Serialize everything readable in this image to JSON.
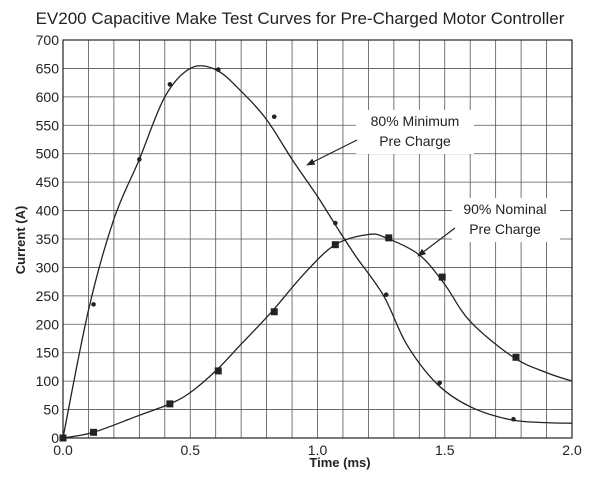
{
  "chart_data": {
    "type": "line",
    "title": "EV200 Capacitive Make Test Curves for Pre-Charged Motor Controller",
    "xlabel": "Time (ms)",
    "ylabel": "Current (A)",
    "xlim": [
      0,
      2.0
    ],
    "ylim": [
      0,
      700
    ],
    "x_ticks": [
      "0.0",
      "0.5",
      "1.0",
      "1.5",
      "2.0"
    ],
    "y_ticks": [
      "0",
      "50",
      "100",
      "150",
      "200",
      "250",
      "300",
      "350",
      "400",
      "450",
      "500",
      "550",
      "600",
      "650",
      "700"
    ],
    "grid": true,
    "series": [
      {
        "name": "80% Minimum Pre Charge",
        "marker": "dot",
        "color": "#222222",
        "curve": [
          [
            0,
            0
          ],
          [
            0.1,
            225
          ],
          [
            0.2,
            385
          ],
          [
            0.3,
            490
          ],
          [
            0.4,
            600
          ],
          [
            0.5,
            650
          ],
          [
            0.6,
            648
          ],
          [
            0.7,
            610
          ],
          [
            0.8,
            560
          ],
          [
            0.9,
            490
          ],
          [
            1.0,
            425
          ],
          [
            1.07,
            375
          ],
          [
            1.15,
            320
          ],
          [
            1.26,
            250
          ],
          [
            1.35,
            165
          ],
          [
            1.47,
            95
          ],
          [
            1.6,
            55
          ],
          [
            1.76,
            32
          ],
          [
            1.9,
            27
          ],
          [
            2.0,
            26
          ]
        ],
        "markers": [
          [
            0,
            0
          ],
          [
            0.12,
            235
          ],
          [
            0.3,
            490
          ],
          [
            0.42,
            622
          ],
          [
            0.61,
            648
          ],
          [
            0.83,
            565
          ],
          [
            1.07,
            378
          ],
          [
            1.27,
            252
          ],
          [
            1.48,
            97
          ],
          [
            1.77,
            33
          ]
        ]
      },
      {
        "name": "90% Nominal Pre Charge",
        "marker": "square",
        "color": "#222222",
        "curve": [
          [
            0,
            0
          ],
          [
            0.12,
            10
          ],
          [
            0.3,
            40
          ],
          [
            0.42,
            60
          ],
          [
            0.5,
            80
          ],
          [
            0.6,
            118
          ],
          [
            0.7,
            165
          ],
          [
            0.82,
            222
          ],
          [
            0.95,
            290
          ],
          [
            1.07,
            340
          ],
          [
            1.2,
            358
          ],
          [
            1.27,
            352
          ],
          [
            1.4,
            322
          ],
          [
            1.5,
            270
          ],
          [
            1.6,
            205
          ],
          [
            1.77,
            142
          ],
          [
            1.9,
            115
          ],
          [
            2.0,
            100
          ]
        ],
        "markers": [
          [
            0,
            0
          ],
          [
            0.12,
            10
          ],
          [
            0.42,
            60
          ],
          [
            0.61,
            118
          ],
          [
            0.83,
            222
          ],
          [
            1.07,
            340
          ],
          [
            1.28,
            352
          ],
          [
            1.49,
            283
          ],
          [
            1.78,
            142
          ]
        ]
      }
    ],
    "annotations": [
      {
        "lines": [
          "80% Minimum",
          "Pre Charge"
        ],
        "series": 0
      },
      {
        "lines": [
          "90% Nominal",
          "Pre Charge"
        ],
        "series": 1
      }
    ]
  }
}
